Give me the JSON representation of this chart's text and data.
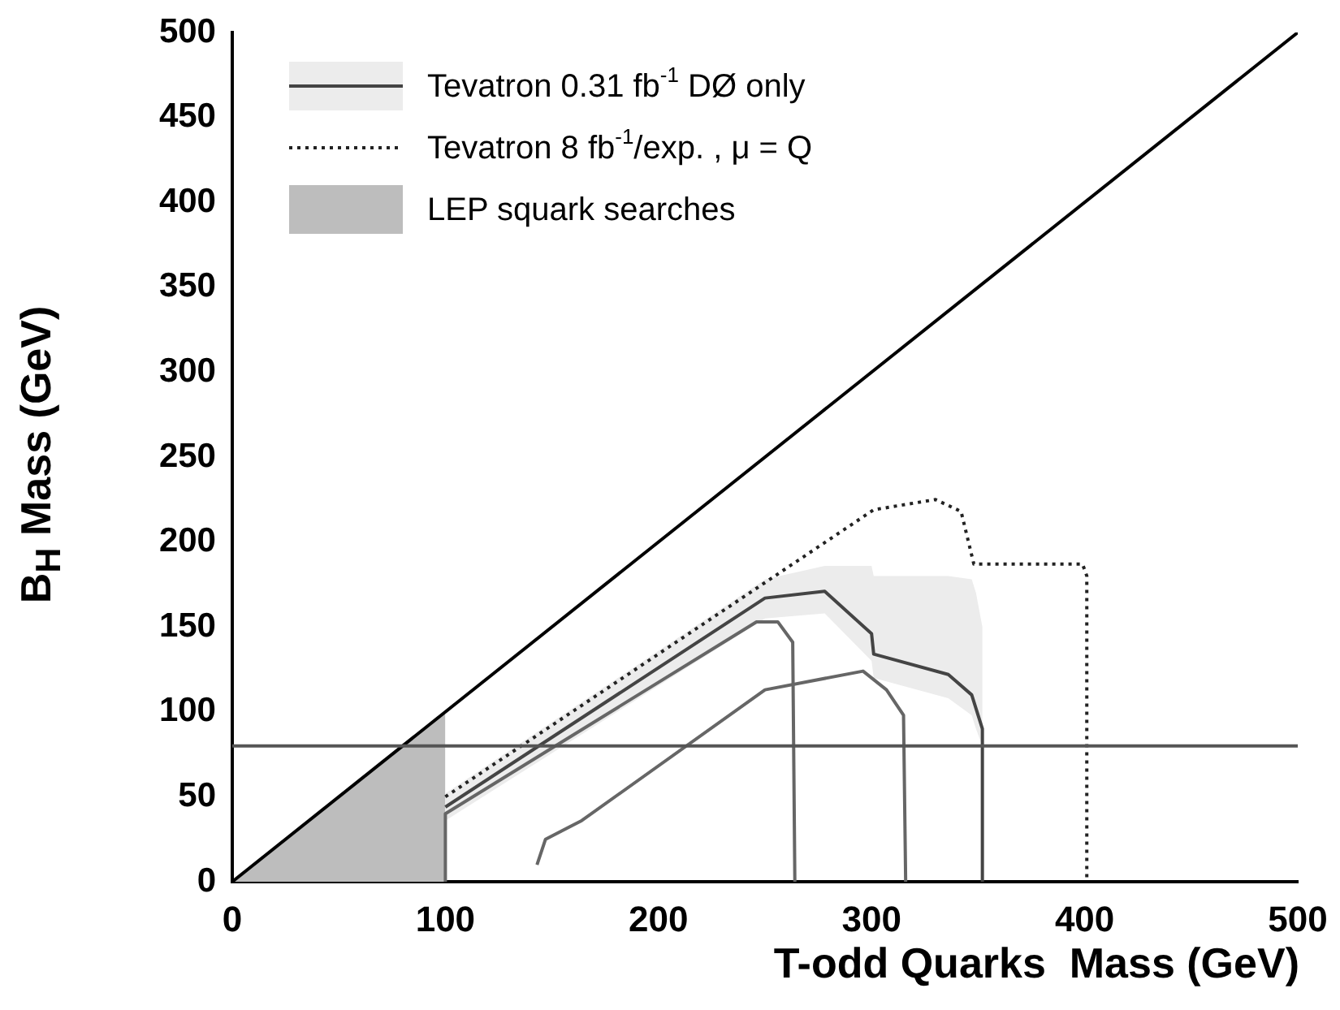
{
  "chart_data": {
    "type": "line",
    "xlabel": "T-odd Quarks  Mass (GeV)",
    "ylabel": "B$_{H}$ Mass (GeV)",
    "xlim": [
      0,
      500
    ],
    "ylim": [
      0,
      500
    ],
    "xticks": [
      0,
      100,
      200,
      300,
      400,
      500
    ],
    "yticks": [
      0,
      50,
      100,
      150,
      200,
      250,
      300,
      350,
      400,
      450,
      500
    ],
    "grid": false,
    "legend": "top left",
    "marker": "none",
    "ref_lines": [
      {
        "axis": "y",
        "value": 80,
        "color": "#555555"
      }
    ],
    "series": [
      {
        "type": "line",
        "color": "#000000",
        "x": [
          0,
          500
        ],
        "values": [
          0,
          500
        ]
      },
      {
        "type": "line",
        "color": "#666666",
        "x": [
          100,
          100,
          246,
          256,
          263,
          264
        ],
        "values": [
          0,
          40,
          153,
          153,
          141,
          0
        ]
      },
      {
        "type": "line",
        "color": "#666666",
        "x": [
          143,
          147,
          164,
          250,
          296,
          307,
          315,
          316
        ],
        "values": [
          10,
          25,
          36,
          113,
          124,
          113,
          98,
          0
        ]
      },
      {
        "type": "line",
        "name": "Tevatron 0.31 fb$^{-1}$ DØ only",
        "color": "#444444",
        "x": [
          100,
          250,
          278,
          300,
          301,
          336,
          347,
          349,
          352,
          352
        ],
        "values": [
          44,
          167,
          171,
          146,
          134,
          122,
          110,
          102,
          90,
          0
        ],
        "lower": [
          36,
          155,
          158,
          130,
          120,
          108,
          98,
          90,
          80,
          0
        ],
        "upper": [
          52,
          178,
          186,
          186,
          180,
          180,
          178,
          170,
          150,
          0
        ]
      },
      {
        "type": "line",
        "name": "Tevatron 8 fb$^{-1}$/exp. , μ = Q",
        "color": "#222222",
        "line_style": "dotted",
        "x": [
          100,
          301,
          330,
          342,
          348,
          399,
          401,
          401
        ],
        "values": [
          50,
          219,
          225,
          218,
          187,
          187,
          180,
          0
        ]
      },
      {
        "type": "area",
        "name": "LEP squark searches",
        "color": "#bdbdbd",
        "x": [
          0,
          100,
          100
        ],
        "values": [
          0,
          100,
          0
        ]
      }
    ]
  }
}
